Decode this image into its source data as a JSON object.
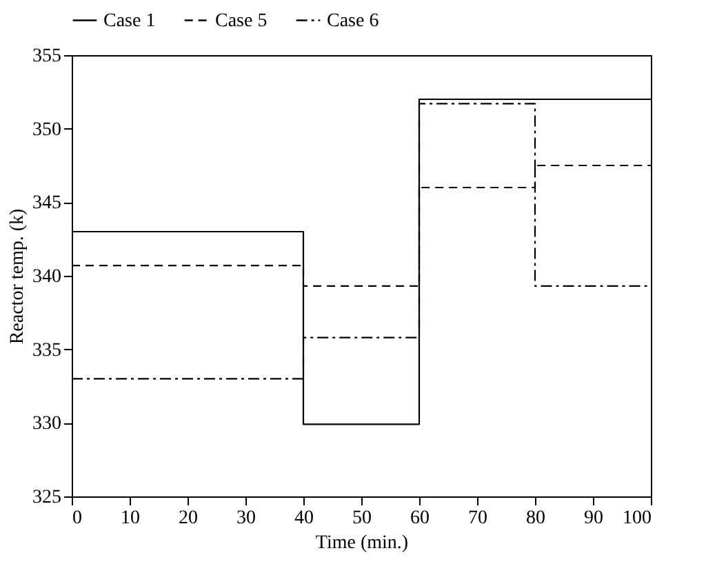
{
  "chart_data": {
    "type": "step",
    "xlabel": "Time (min.)",
    "ylabel": "Reactor temp. (k)",
    "xlim": [
      0,
      100
    ],
    "xticks": [
      0,
      10,
      20,
      30,
      40,
      50,
      60,
      70,
      80,
      90,
      100
    ],
    "ylim": [
      325,
      355
    ],
    "yticks": [
      325,
      330,
      335,
      340,
      345,
      350,
      355
    ],
    "grid": false,
    "legend": "top",
    "series": [
      {
        "name": "Case 1",
        "color": "#000000",
        "line_style": "solid",
        "x": [
          0,
          40,
          60,
          100
        ],
        "values": [
          343,
          329.9,
          352,
          352
        ]
      },
      {
        "name": "Case 5",
        "color": "#000000",
        "line_style": "dashed",
        "x": [
          0,
          40,
          60,
          80,
          100
        ],
        "values": [
          340.7,
          339.3,
          346,
          347.5,
          347.5
        ]
      },
      {
        "name": "Case 6",
        "color": "#000000",
        "line_style": "dashdot",
        "x": [
          0,
          40,
          60,
          80,
          100
        ],
        "values": [
          333,
          335.8,
          351.7,
          339.3,
          339.3
        ]
      }
    ]
  }
}
